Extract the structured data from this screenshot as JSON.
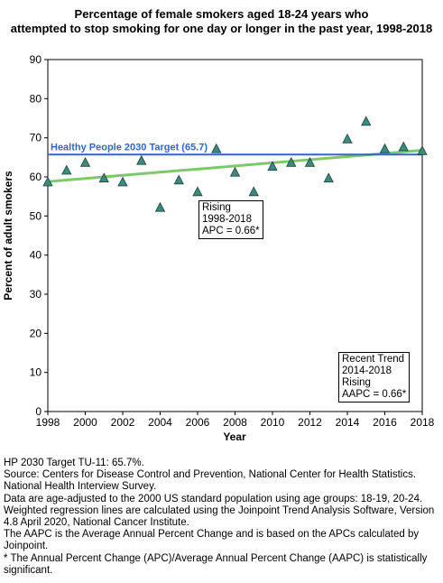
{
  "chart_data": {
    "type": "scatter",
    "title": [
      "Percentage of female smokers aged 18-24 years who",
      "attempted to stop smoking for one day or longer in the past year, 1998-2018"
    ],
    "xlabel": "Year",
    "ylabel": "Percent of adult smokers",
    "xlim": [
      1998,
      2018
    ],
    "ylim": [
      0,
      90
    ],
    "x_ticks": [
      1998,
      2000,
      2002,
      2004,
      2006,
      2008,
      2010,
      2012,
      2014,
      2016,
      2018
    ],
    "y_ticks": [
      0,
      10,
      20,
      30,
      40,
      50,
      60,
      70,
      80,
      90
    ],
    "grid": false,
    "series": [
      {
        "marker": "triangle",
        "color": "#3b8a7e",
        "x": [
          1998,
          1999,
          2000,
          2001,
          2002,
          2003,
          2004,
          2005,
          2006,
          2007,
          2008,
          2009,
          2010,
          2011,
          2012,
          2013,
          2014,
          2015,
          2016,
          2017,
          2018
        ],
        "y": [
          58.5,
          61.5,
          63.5,
          59.5,
          58.5,
          64.0,
          52.0,
          59.0,
          56.0,
          67.0,
          61.0,
          56.0,
          62.5,
          63.5,
          63.5,
          59.5,
          69.5,
          74.0,
          67.0,
          67.5,
          66.5
        ]
      }
    ],
    "regression": {
      "color": "#7dc96a",
      "x": [
        1998,
        2000,
        2002,
        2004,
        2006,
        2008,
        2010,
        2012,
        2014,
        2016,
        2018
      ],
      "y": [
        58.8,
        59.6,
        60.4,
        61.2,
        62.0,
        62.8,
        63.6,
        64.4,
        65.2,
        66.0,
        66.8
      ]
    },
    "target": {
      "value": 65.7,
      "label": "Healthy People 2030 Target (65.7)",
      "color": "#3366cc"
    },
    "annotations": {
      "full_period": [
        "Rising",
        "1998-2018",
        "APC =  0.66*"
      ],
      "recent": [
        "Recent Trend",
        "2014-2018",
        "Rising",
        "AAPC =  0.66*"
      ]
    }
  },
  "notes": [
    "HP 2030 Target TU-11: 65.7%.",
    "Source: Centers for Disease Control and Prevention, National Center for Health Statistics. National Health Interview Survey.",
    "Data are age-adjusted to the 2000 US standard population using age groups: 18-19, 20-24.",
    "Weighted regression lines are calculated using the Joinpoint Trend Analysis Software, Version 4.8 April 2020, National Cancer Institute.",
    "The AAPC is the Average Annual Percent Change and is based on the APCs calculated by Joinpoint.",
    "* The Annual Percent Change (APC)/Average Annual Percent Change (AAPC) is statistically significant."
  ]
}
